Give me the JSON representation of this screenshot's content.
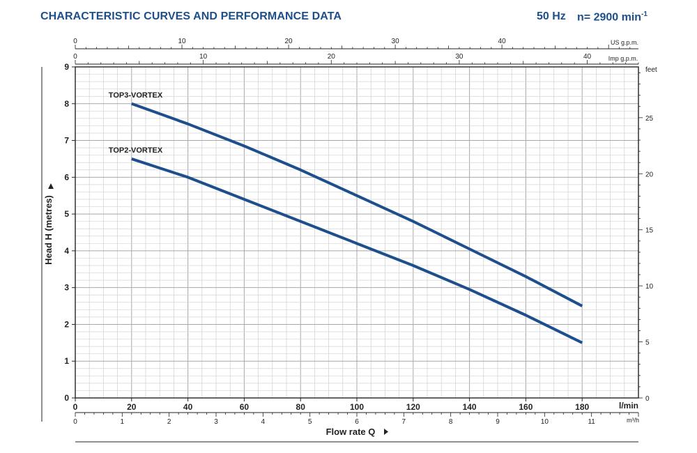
{
  "header": {
    "title": "CHARACTERISTIC CURVES AND PERFORMANCE DATA",
    "frequency": "50 Hz",
    "speed": "n= 2900 min",
    "speed_exponent": "-1"
  },
  "chart_data": {
    "type": "line",
    "title": "CHARACTERISTIC CURVES AND PERFORMANCE DATA",
    "xlabel": "Flow rate Q",
    "ylabel": "Head H (metres)",
    "x_unit": "l/min",
    "xlim": [
      0,
      200
    ],
    "ylim": [
      0,
      9
    ],
    "x_ticks": [
      "0",
      "20",
      "40",
      "60",
      "80",
      "100",
      "120",
      "140",
      "160",
      "180"
    ],
    "y_ticks": [
      "0",
      "1",
      "2",
      "3",
      "4",
      "5",
      "6",
      "7",
      "8",
      "9"
    ],
    "grid": true,
    "series_color": "#1d4f8c",
    "series": [
      {
        "name": "TOP3-VORTEX",
        "x": [
          20,
          40,
          60,
          80,
          100,
          120,
          140,
          160,
          180
        ],
        "y": [
          8.0,
          7.45,
          6.85,
          6.2,
          5.5,
          4.8,
          4.05,
          3.3,
          2.5
        ]
      },
      {
        "name": "TOP2-VORTEX",
        "x": [
          20,
          40,
          60,
          80,
          100,
          120,
          140,
          160,
          180
        ],
        "y": [
          6.5,
          6.0,
          5.4,
          4.8,
          4.2,
          3.6,
          2.95,
          2.25,
          1.5
        ]
      }
    ],
    "secondary_axes": {
      "us_gpm": {
        "label": "US g.p.m.",
        "max": 52.8,
        "ticks": [
          "0",
          "10",
          "20",
          "30",
          "40"
        ]
      },
      "imp_gpm": {
        "label": "Imp g.p.m.",
        "max": 44,
        "ticks": [
          "0",
          "10",
          "20",
          "30",
          "40"
        ]
      },
      "m3h": {
        "label": "m³/h",
        "max": 12,
        "ticks": [
          "0",
          "1",
          "2",
          "3",
          "4",
          "5",
          "6",
          "7",
          "8",
          "9",
          "10",
          "11"
        ]
      },
      "feet": {
        "label": "feet",
        "max": 29.53,
        "ticks": [
          "0",
          "5",
          "10",
          "15",
          "20",
          "25"
        ]
      }
    }
  }
}
